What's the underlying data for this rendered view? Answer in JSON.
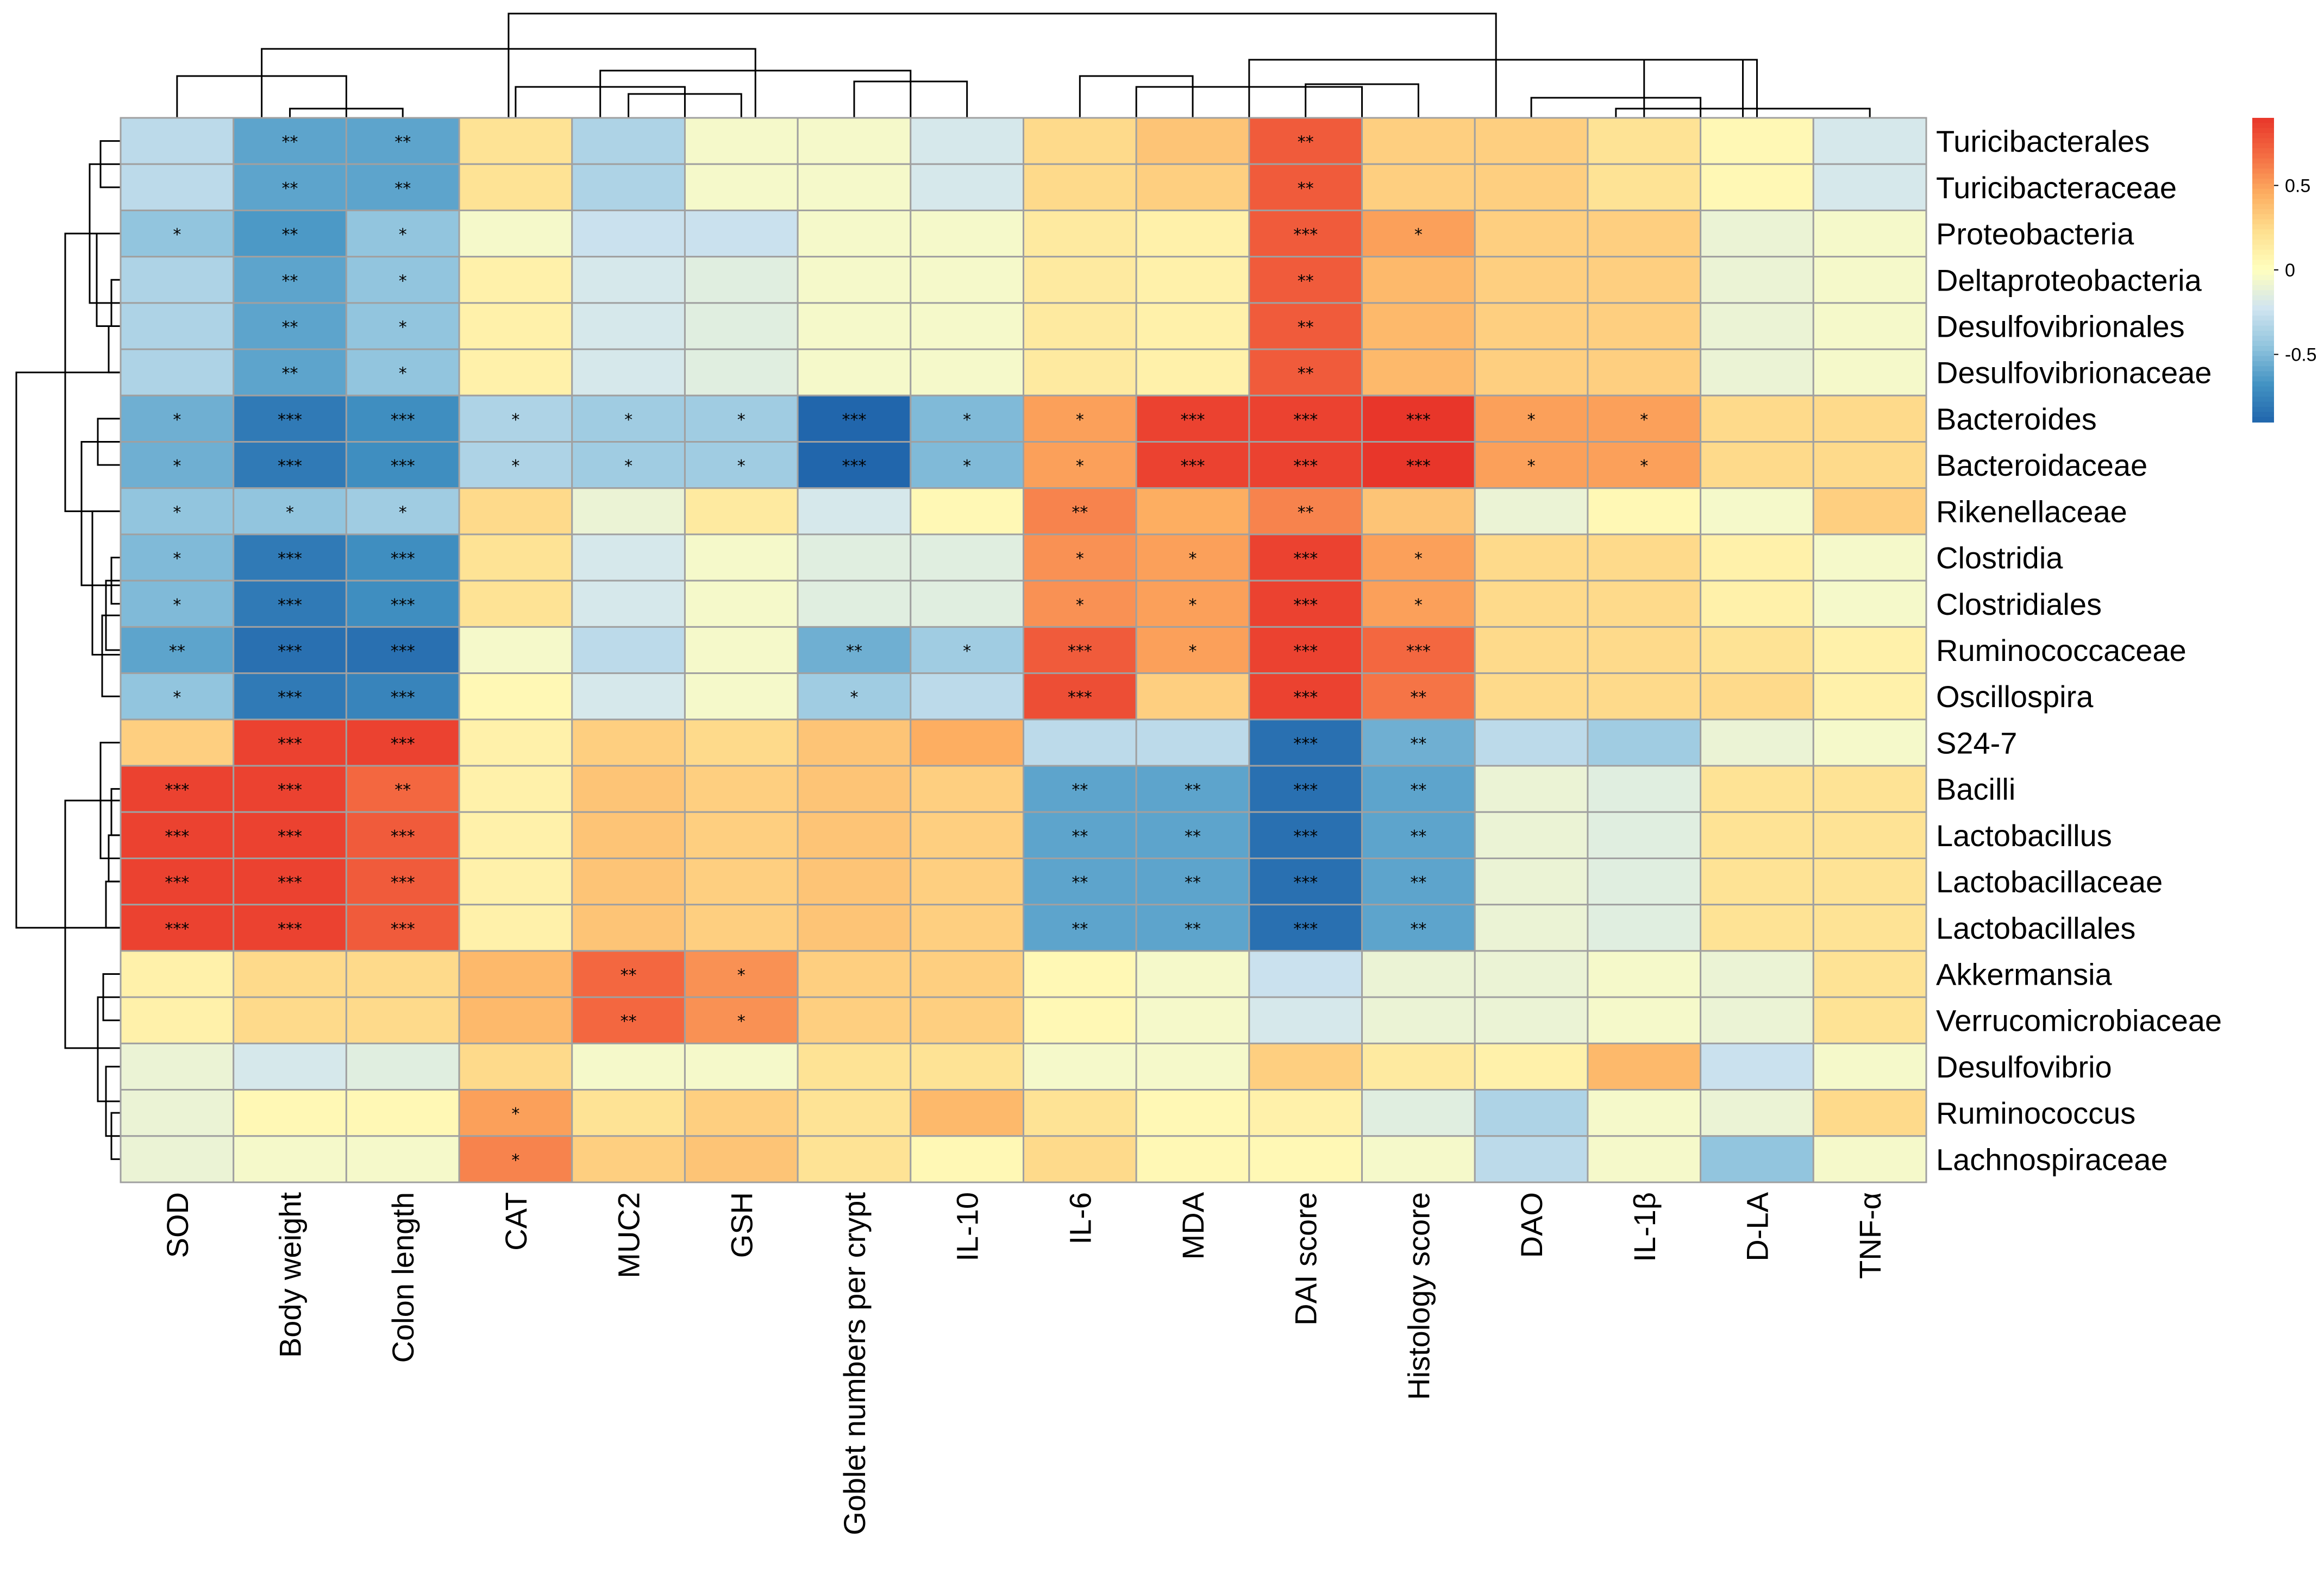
{
  "chart_data": {
    "type": "heatmap",
    "title": "",
    "rows": [
      "Turicibacterales",
      "Turicibacteraceae",
      "Proteobacteria",
      "Deltaproteobacteria",
      "Desulfovibrionales",
      "Desulfovibrionaceae",
      "Bacteroides",
      "Bacteroidaceae",
      "Rikenellaceae",
      "Clostridia",
      "Clostridiales",
      "Ruminococcaceae",
      "Oscillospira",
      "S24-7",
      "Bacilli",
      "Lactobacillus",
      "Lactobacillaceae",
      "Lactobacillales",
      "Akkermansia",
      "Verrucomicrobiaceae",
      "Desulfovibrio",
      "Ruminococcus",
      "Lachnospiraceae"
    ],
    "columns": [
      "SOD",
      "Body weight",
      "Colon length",
      "CAT",
      "MUC2",
      "GSH",
      "Goblet numbers per crypt",
      "IL-10",
      "IL-6",
      "MDA",
      "DAI score",
      "Histology score",
      "DAO",
      "IL-1β",
      "D-LA",
      "TNF-α"
    ],
    "values": [
      [
        -0.3,
        -0.6,
        -0.6,
        0.2,
        -0.35,
        -0.05,
        -0.05,
        -0.2,
        0.25,
        0.35,
        0.75,
        0.3,
        0.3,
        0.2,
        0.05,
        -0.2
      ],
      [
        -0.3,
        -0.6,
        -0.6,
        0.2,
        -0.35,
        -0.05,
        -0.05,
        -0.2,
        0.25,
        0.3,
        0.75,
        0.3,
        0.3,
        0.2,
        0.05,
        -0.2
      ],
      [
        -0.45,
        -0.65,
        -0.45,
        -0.05,
        -0.25,
        -0.25,
        -0.05,
        -0.05,
        0.15,
        0.1,
        0.75,
        0.5,
        0.3,
        0.3,
        -0.1,
        -0.05
      ],
      [
        -0.35,
        -0.6,
        -0.45,
        0.1,
        -0.2,
        -0.15,
        -0.05,
        -0.05,
        0.15,
        0.1,
        0.75,
        0.4,
        0.3,
        0.3,
        -0.1,
        -0.05
      ],
      [
        -0.35,
        -0.6,
        -0.45,
        0.1,
        -0.2,
        -0.15,
        -0.05,
        -0.05,
        0.15,
        0.1,
        0.75,
        0.4,
        0.3,
        0.3,
        -0.1,
        -0.05
      ],
      [
        -0.35,
        -0.6,
        -0.45,
        0.1,
        -0.2,
        -0.15,
        -0.05,
        -0.05,
        0.15,
        0.1,
        0.75,
        0.4,
        0.3,
        0.3,
        -0.1,
        -0.05
      ],
      [
        -0.55,
        -0.8,
        -0.7,
        -0.35,
        -0.4,
        -0.4,
        -0.9,
        -0.5,
        0.5,
        0.85,
        0.85,
        0.9,
        0.5,
        0.5,
        0.25,
        0.25
      ],
      [
        -0.55,
        -0.8,
        -0.7,
        -0.35,
        -0.4,
        -0.4,
        -0.9,
        -0.5,
        0.5,
        0.85,
        0.85,
        0.9,
        0.5,
        0.5,
        0.25,
        0.25
      ],
      [
        -0.45,
        -0.45,
        -0.4,
        0.25,
        -0.1,
        0.15,
        -0.2,
        0.05,
        0.6,
        0.45,
        0.6,
        0.35,
        -0.1,
        0.05,
        -0.05,
        0.3
      ],
      [
        -0.5,
        -0.8,
        -0.7,
        0.2,
        -0.2,
        -0.05,
        -0.15,
        -0.15,
        0.55,
        0.5,
        0.85,
        0.5,
        0.25,
        0.25,
        0.1,
        -0.05
      ],
      [
        -0.5,
        -0.8,
        -0.7,
        0.2,
        -0.2,
        -0.05,
        -0.15,
        -0.15,
        0.55,
        0.5,
        0.85,
        0.5,
        0.25,
        0.25,
        0.1,
        -0.05
      ],
      [
        -0.6,
        -0.85,
        -0.85,
        -0.05,
        -0.3,
        -0.05,
        -0.55,
        -0.4,
        0.75,
        0.5,
        0.85,
        0.7,
        0.25,
        0.25,
        0.2,
        0.1
      ],
      [
        -0.45,
        -0.8,
        -0.75,
        0.05,
        -0.2,
        -0.05,
        -0.4,
        -0.3,
        0.8,
        0.3,
        0.85,
        0.65,
        0.25,
        0.25,
        0.25,
        0.1
      ],
      [
        0.3,
        0.85,
        0.85,
        0.1,
        0.3,
        0.25,
        0.35,
        0.45,
        -0.3,
        -0.3,
        -0.85,
        -0.55,
        -0.3,
        -0.4,
        -0.1,
        -0.05
      ],
      [
        0.85,
        0.85,
        0.7,
        0.1,
        0.35,
        0.3,
        0.35,
        0.3,
        -0.6,
        -0.6,
        -0.85,
        -0.6,
        -0.1,
        -0.15,
        0.2,
        0.2
      ],
      [
        0.85,
        0.85,
        0.75,
        0.1,
        0.35,
        0.3,
        0.35,
        0.3,
        -0.6,
        -0.6,
        -0.85,
        -0.6,
        -0.1,
        -0.15,
        0.2,
        0.2
      ],
      [
        0.85,
        0.85,
        0.75,
        0.1,
        0.35,
        0.3,
        0.35,
        0.3,
        -0.6,
        -0.6,
        -0.85,
        -0.6,
        -0.1,
        -0.15,
        0.2,
        0.2
      ],
      [
        0.85,
        0.85,
        0.75,
        0.1,
        0.35,
        0.3,
        0.35,
        0.3,
        -0.6,
        -0.6,
        -0.85,
        -0.6,
        -0.1,
        -0.15,
        0.2,
        0.2
      ],
      [
        0.1,
        0.25,
        0.25,
        0.4,
        0.7,
        0.55,
        0.3,
        0.3,
        0.05,
        -0.05,
        -0.25,
        -0.1,
        -0.1,
        -0.05,
        -0.1,
        0.2
      ],
      [
        0.1,
        0.25,
        0.25,
        0.4,
        0.7,
        0.55,
        0.3,
        0.3,
        0.05,
        -0.05,
        -0.2,
        -0.1,
        -0.1,
        -0.05,
        -0.1,
        0.2
      ],
      [
        -0.1,
        -0.2,
        -0.15,
        0.25,
        -0.05,
        -0.05,
        0.2,
        0.2,
        -0.05,
        -0.05,
        0.3,
        0.15,
        0.1,
        0.4,
        -0.25,
        -0.05
      ],
      [
        -0.1,
        0.05,
        0.05,
        0.5,
        0.2,
        0.3,
        0.2,
        0.4,
        0.2,
        0.05,
        0.1,
        -0.15,
        -0.35,
        -0.05,
        -0.1,
        0.25
      ],
      [
        -0.1,
        -0.05,
        -0.05,
        0.6,
        0.3,
        0.35,
        0.2,
        0.05,
        0.25,
        0.05,
        0.05,
        -0.05,
        -0.3,
        -0.05,
        -0.45,
        -0.05
      ]
    ],
    "significance": [
      [
        "",
        "**",
        "**",
        "",
        "",
        "",
        "",
        "",
        "",
        "",
        "**",
        "",
        "",
        "",
        "",
        ""
      ],
      [
        "",
        "**",
        "**",
        "",
        "",
        "",
        "",
        "",
        "",
        "",
        "**",
        "",
        "",
        "",
        "",
        ""
      ],
      [
        "*",
        "**",
        "*",
        "",
        "",
        "",
        "",
        "",
        "",
        "",
        "***",
        "*",
        "",
        "",
        "",
        ""
      ],
      [
        "",
        "**",
        "*",
        "",
        "",
        "",
        "",
        "",
        "",
        "",
        "**",
        "",
        "",
        "",
        "",
        ""
      ],
      [
        "",
        "**",
        "*",
        "",
        "",
        "",
        "",
        "",
        "",
        "",
        "**",
        "",
        "",
        "",
        "",
        ""
      ],
      [
        "",
        "**",
        "*",
        "",
        "",
        "",
        "",
        "",
        "",
        "",
        "**",
        "",
        "",
        "",
        "",
        ""
      ],
      [
        "*",
        "***",
        "***",
        "*",
        "*",
        "*",
        "***",
        "*",
        "*",
        "***",
        "***",
        "***",
        "*",
        "*",
        "",
        ""
      ],
      [
        "*",
        "***",
        "***",
        "*",
        "*",
        "*",
        "***",
        "*",
        "*",
        "***",
        "***",
        "***",
        "*",
        "*",
        "",
        ""
      ],
      [
        "*",
        "*",
        "*",
        "",
        "",
        "",
        "",
        "",
        "**",
        "",
        "**",
        "",
        "",
        "",
        "",
        ""
      ],
      [
        "*",
        "***",
        "***",
        "",
        "",
        "",
        "",
        "",
        "*",
        "*",
        "***",
        "*",
        "",
        "",
        "",
        ""
      ],
      [
        "*",
        "***",
        "***",
        "",
        "",
        "",
        "",
        "",
        "*",
        "*",
        "***",
        "*",
        "",
        "",
        "",
        ""
      ],
      [
        "**",
        "***",
        "***",
        "",
        "",
        "",
        "**",
        "*",
        "***",
        "*",
        "***",
        "***",
        "",
        "",
        "",
        ""
      ],
      [
        "*",
        "***",
        "***",
        "",
        "",
        "",
        "*",
        "",
        "***",
        "",
        "***",
        "**",
        "",
        "",
        "",
        ""
      ],
      [
        "",
        "***",
        "***",
        "",
        "",
        "",
        "",
        "",
        "",
        "",
        "***",
        "**",
        "",
        "",
        "",
        ""
      ],
      [
        "***",
        "***",
        "**",
        "",
        "",
        "",
        "",
        "",
        "**",
        "**",
        "***",
        "**",
        "",
        "",
        "",
        ""
      ],
      [
        "***",
        "***",
        "***",
        "",
        "",
        "",
        "",
        "",
        "**",
        "**",
        "***",
        "**",
        "",
        "",
        "",
        ""
      ],
      [
        "***",
        "***",
        "***",
        "",
        "",
        "",
        "",
        "",
        "**",
        "**",
        "***",
        "**",
        "",
        "",
        "",
        ""
      ],
      [
        "***",
        "***",
        "***",
        "",
        "",
        "",
        "",
        "",
        "**",
        "**",
        "***",
        "**",
        "",
        "",
        "",
        ""
      ],
      [
        "",
        "",
        "",
        "",
        "**",
        "*",
        "",
        "",
        "",
        "",
        "",
        "",
        "",
        "",
        "",
        ""
      ],
      [
        "",
        "",
        "",
        "",
        "**",
        "*",
        "",
        "",
        "",
        "",
        "",
        "",
        "",
        "",
        "",
        ""
      ],
      [
        "",
        "",
        "",
        "",
        "",
        "",
        "",
        "",
        "",
        "",
        "",
        "",
        "",
        "",
        "",
        ""
      ],
      [
        "",
        "",
        "",
        "*",
        "",
        "",
        "",
        "",
        "",
        "",
        "",
        "",
        "",
        "",
        "",
        ""
      ],
      [
        "",
        "",
        "",
        "*",
        "",
        "",
        "",
        "",
        "",
        "",
        "",
        "",
        "",
        "",
        "",
        ""
      ]
    ],
    "color_scale": {
      "min": -0.9,
      "max": 0.9,
      "stops": [
        "#2166ac",
        "#4393c3",
        "#92c5de",
        "#d1e5f0",
        "#ffffbf",
        "#fee090",
        "#fdae61",
        "#f46d43",
        "#e8362a"
      ]
    },
    "legend": {
      "position": "top-right",
      "ticks": [
        0.5,
        0,
        -0.5
      ],
      "tick_labels": [
        "0.5",
        "0",
        "-0.5"
      ]
    },
    "colors": {
      "grid": "#a0a0a0",
      "dendrogram": "#000000"
    }
  }
}
